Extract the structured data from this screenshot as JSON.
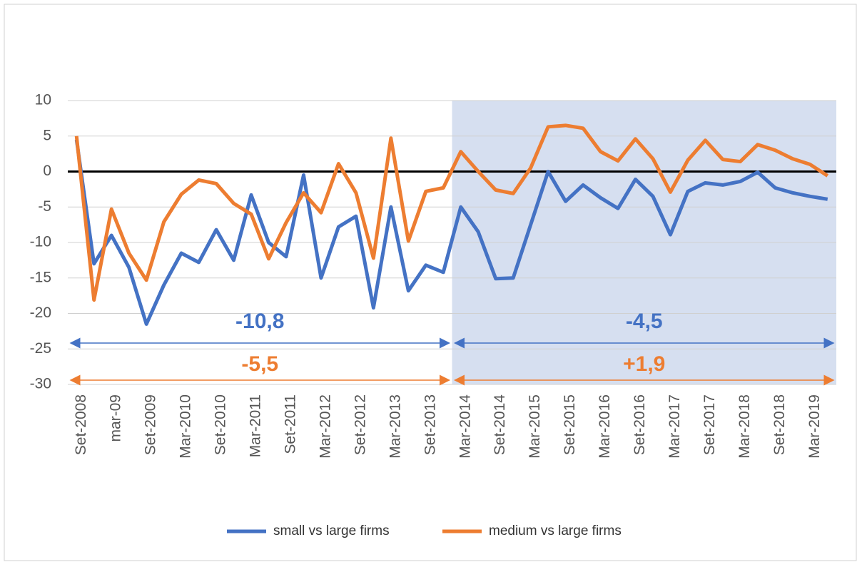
{
  "chart_data": {
    "type": "line",
    "categories": [
      "Set-2008",
      null,
      "mar-09",
      null,
      "Set-2009",
      null,
      "Mar-2010",
      null,
      "Set-2010",
      null,
      "Mar-2011",
      null,
      "Set-2011",
      null,
      "Mar-2012",
      null,
      "Set-2012",
      null,
      "Mar-2013",
      null,
      "Set-2013",
      null,
      "Mar-2014",
      null,
      "Set-2014",
      null,
      "Mar-2015",
      null,
      "Set-2015",
      null,
      "Mar-2016",
      null,
      "Set-2016",
      null,
      "Mar-2017",
      null,
      "Set-2017",
      null,
      "Mar-2018",
      null,
      "Set-2018",
      null,
      "Mar-2019",
      null
    ],
    "series": [
      {
        "name": "small vs large firms",
        "color": "#4472c4",
        "values": [
          4.5,
          -13,
          -9,
          -13.5,
          -21.5,
          -16,
          -11.5,
          -12.8,
          -8.2,
          -12.5,
          -3.3,
          -10,
          -12,
          -0.5,
          -15,
          -7.8,
          -6.3,
          -19.2,
          -5,
          -16.8,
          -13.2,
          -14.2,
          -5,
          -8.5,
          -15.1,
          -15,
          -7.5,
          0,
          -4.2,
          -1.9,
          -3.7,
          -5.2,
          -1.1,
          -3.5,
          -8.9,
          -2.8,
          -1.6,
          -1.9,
          -1.4,
          -0.1,
          -2.3,
          -3,
          -3.5,
          -3.9
        ]
      },
      {
        "name": "medium vs large firms",
        "color": "#ed7d31",
        "values": [
          5,
          -18.1,
          -5.3,
          -11.5,
          -15.3,
          -7.1,
          -3.2,
          -1.2,
          -1.7,
          -4.5,
          -6,
          -12.3,
          -7.2,
          -3,
          -5.8,
          1.1,
          -3,
          -12.2,
          4.7,
          -9.8,
          -2.8,
          -2.3,
          2.8,
          0,
          -2.6,
          -3.1,
          0.5,
          6.3,
          6.5,
          6.1,
          2.8,
          1.5,
          4.6,
          1.8,
          -2.9,
          1.6,
          4.4,
          1.7,
          1.4,
          3.8,
          3,
          1.8,
          1,
          -0.6
        ]
      }
    ],
    "ylim": [
      -30,
      10
    ],
    "yticks": [
      -30,
      -25,
      -20,
      -15,
      -10,
      -5,
      0,
      5,
      10
    ],
    "grid": true,
    "periods": [
      {
        "from": "Set-2008",
        "shaded": false,
        "labels": [
          {
            "value": -10.8,
            "label": "-10,8"
          },
          {
            "value": -5.5,
            "label": "-5,5"
          }
        ]
      },
      {
        "from": "Mar-2014",
        "shaded": true,
        "labels": [
          {
            "value": -4.5,
            "label": "-4,5"
          },
          {
            "value": 1.9,
            "label": "+1,9"
          }
        ]
      }
    ],
    "legend": "bottom"
  }
}
